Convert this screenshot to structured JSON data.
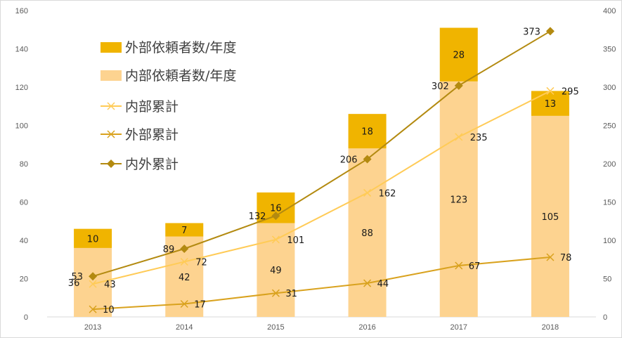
{
  "chart_data": {
    "type": "bar",
    "categories": [
      "2013",
      "2014",
      "2015",
      "2016",
      "2017",
      "2018"
    ],
    "left_axis": {
      "ylim": [
        0,
        160
      ],
      "ticks": [
        "0",
        "20",
        "40",
        "60",
        "80",
        "100",
        "120",
        "140",
        "160"
      ]
    },
    "right_axis": {
      "ylim": [
        0,
        400
      ],
      "ticks": [
        "0",
        "50",
        "100",
        "150",
        "200",
        "250",
        "300",
        "350",
        "400"
      ]
    },
    "series": [
      {
        "name": "外部依頼者数/年度",
        "kind": "stacked-bar",
        "axis": "left",
        "color": "#F0B400",
        "values": [
          10,
          7,
          16,
          18,
          28,
          13
        ],
        "labels": [
          "10",
          "7",
          "16",
          "18",
          "28",
          "13"
        ]
      },
      {
        "name": "内部依頼者数/年度",
        "kind": "stacked-bar",
        "axis": "left",
        "color": "#FDD390",
        "values": [
          36,
          42,
          49,
          88,
          123,
          105
        ],
        "labels": [
          "36",
          "42",
          "49",
          "88",
          "123",
          "105"
        ]
      },
      {
        "name": "内部累計",
        "kind": "line",
        "marker": "x",
        "axis": "right",
        "color": "#FFCB57",
        "values": [
          43,
          72,
          101,
          162,
          235,
          295
        ],
        "labels": [
          "43",
          "72",
          "101",
          "162",
          "235",
          "295"
        ]
      },
      {
        "name": "外部累計",
        "kind": "line",
        "marker": "x",
        "axis": "right",
        "color": "#D9A21E",
        "values": [
          10,
          17,
          31,
          44,
          67,
          78
        ],
        "labels": [
          "10",
          "17",
          "31",
          "44",
          "67",
          "78"
        ]
      },
      {
        "name": "内外累計",
        "kind": "line",
        "marker": "diamond",
        "axis": "right",
        "color": "#B38A10",
        "values": [
          53,
          89,
          132,
          206,
          302,
          373
        ],
        "labels": [
          "53",
          "89",
          "132",
          "206",
          "302",
          "373"
        ]
      }
    ],
    "legend_position": "top-left",
    "grid": false
  }
}
